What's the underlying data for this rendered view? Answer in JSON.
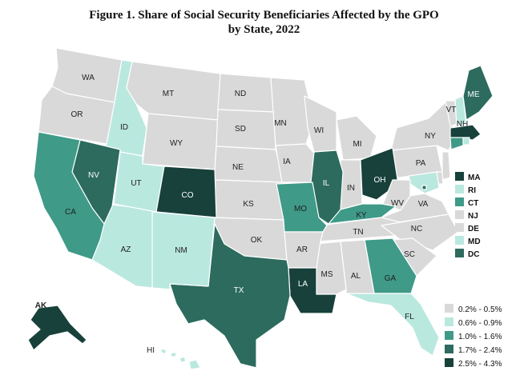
{
  "title": {
    "line1": "Figure 1. Share of Social Security Beneficiaries Affected by the GPO",
    "line2": "by State, 2022"
  },
  "colors": {
    "c0": "#d9d9d9",
    "c1": "#b9e8df",
    "c2": "#3f9a88",
    "c3": "#2c6b5e",
    "c4": "#17413a"
  },
  "map_data": {
    "type": "choropleth",
    "bins": [
      {
        "key": "c0",
        "label": "0.2% - 0.5%"
      },
      {
        "key": "c1",
        "label": "0.6% - 0.9%"
      },
      {
        "key": "c2",
        "label": "1.0% - 1.6%"
      },
      {
        "key": "c3",
        "label": "1.7% - 2.4%"
      },
      {
        "key": "c4",
        "label": "2.5% - 4.3%"
      }
    ],
    "states": {
      "WA": "c0",
      "OR": "c0",
      "ID": "c1",
      "MT": "c0",
      "WY": "c0",
      "ND": "c0",
      "SD": "c0",
      "NE": "c0",
      "KS": "c0",
      "OK": "c0",
      "MN": "c0",
      "IA": "c0",
      "WI": "c0",
      "MI": "c0",
      "IN": "c0",
      "PA": "c0",
      "NY": "c0",
      "VT": "c0",
      "NH": "c1",
      "ME": "c3",
      "MA": "c4",
      "RI": "c1",
      "CT": "c2",
      "NJ": "c0",
      "DE": "c0",
      "MD": "c1",
      "DC": "c3",
      "VA": "c0",
      "WV": "c0",
      "NC": "c0",
      "SC": "c0",
      "GA": "c2",
      "FL": "c1",
      "AL": "c0",
      "MS": "c0",
      "TN": "c0",
      "KY": "c2",
      "OH": "c4",
      "IL": "c3",
      "MO": "c2",
      "AR": "c0",
      "LA": "c4",
      "TX": "c3",
      "NM": "c1",
      "AZ": "c1",
      "UT": "c1",
      "NV": "c3",
      "CA": "c2",
      "CO": "c4",
      "AK": "c4",
      "HI": "c1"
    },
    "small_states": [
      "MA",
      "RI",
      "CT",
      "NJ",
      "DE",
      "MD",
      "DC"
    ]
  }
}
